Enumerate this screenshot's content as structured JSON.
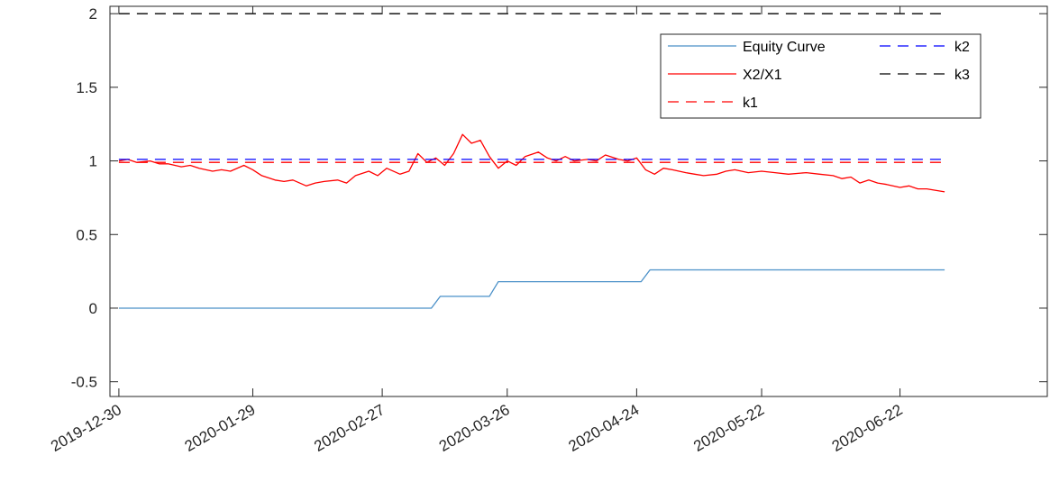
{
  "chart_data": {
    "type": "line",
    "title": "",
    "xlabel": "",
    "ylabel": "",
    "xlim": [
      "2019-12-28",
      "2020-07-25"
    ],
    "ylim": [
      -0.6,
      2.05
    ],
    "y_ticks": [
      -0.5,
      0,
      0.5,
      1,
      1.5,
      2
    ],
    "y_tick_labels": [
      "-0.5",
      "0",
      "0.5",
      "1",
      "1.5",
      "2"
    ],
    "x_ticks": [
      "2019-12-30",
      "2020-01-29",
      "2020-02-27",
      "2020-03-26",
      "2020-04-24",
      "2020-05-22",
      "2020-06-22"
    ],
    "x_tick_labels": [
      "2019-12-30",
      "2020-01-29",
      "2020-02-27",
      "2020-03-26",
      "2020-04-24",
      "2020-05-22",
      "2020-06-22"
    ],
    "grid": false,
    "legend_position": "top-right",
    "legend_columns": 2,
    "series": [
      {
        "name": "Equity Curve",
        "color": "#4A90C8",
        "style": "solid",
        "points": [
          [
            "2019-12-30",
            0
          ],
          [
            "2020-03-09",
            0
          ],
          [
            "2020-03-11",
            0.08
          ],
          [
            "2020-03-22",
            0.08
          ],
          [
            "2020-03-24",
            0.18
          ],
          [
            "2020-04-25",
            0.18
          ],
          [
            "2020-04-27",
            0.26
          ],
          [
            "2020-07-02",
            0.26
          ]
        ]
      },
      {
        "name": "X2/X1",
        "color": "#FF0000",
        "style": "solid",
        "points": [
          [
            "2019-12-30",
            1.0
          ],
          [
            "2020-01-01",
            1.01
          ],
          [
            "2020-01-03",
            0.99
          ],
          [
            "2020-01-06",
            1.0
          ],
          [
            "2020-01-08",
            0.98
          ],
          [
            "2020-01-10",
            0.98
          ],
          [
            "2020-01-13",
            0.96
          ],
          [
            "2020-01-15",
            0.97
          ],
          [
            "2020-01-17",
            0.95
          ],
          [
            "2020-01-20",
            0.93
          ],
          [
            "2020-01-22",
            0.94
          ],
          [
            "2020-01-24",
            0.93
          ],
          [
            "2020-01-27",
            0.97
          ],
          [
            "2020-01-29",
            0.94
          ],
          [
            "2020-01-31",
            0.9
          ],
          [
            "2020-02-03",
            0.87
          ],
          [
            "2020-02-05",
            0.86
          ],
          [
            "2020-02-07",
            0.87
          ],
          [
            "2020-02-10",
            0.83
          ],
          [
            "2020-02-12",
            0.85
          ],
          [
            "2020-02-14",
            0.86
          ],
          [
            "2020-02-17",
            0.87
          ],
          [
            "2020-02-19",
            0.85
          ],
          [
            "2020-02-21",
            0.9
          ],
          [
            "2020-02-24",
            0.93
          ],
          [
            "2020-02-26",
            0.9
          ],
          [
            "2020-02-28",
            0.95
          ],
          [
            "2020-03-02",
            0.91
          ],
          [
            "2020-03-04",
            0.93
          ],
          [
            "2020-03-06",
            1.05
          ],
          [
            "2020-03-08",
            0.99
          ],
          [
            "2020-03-10",
            1.02
          ],
          [
            "2020-03-12",
            0.97
          ],
          [
            "2020-03-14",
            1.05
          ],
          [
            "2020-03-16",
            1.18
          ],
          [
            "2020-03-18",
            1.12
          ],
          [
            "2020-03-20",
            1.14
          ],
          [
            "2020-03-22",
            1.03
          ],
          [
            "2020-03-24",
            0.95
          ],
          [
            "2020-03-26",
            1.0
          ],
          [
            "2020-03-28",
            0.97
          ],
          [
            "2020-03-30",
            1.03
          ],
          [
            "2020-04-02",
            1.06
          ],
          [
            "2020-04-04",
            1.02
          ],
          [
            "2020-04-06",
            1.0
          ],
          [
            "2020-04-08",
            1.03
          ],
          [
            "2020-04-10",
            1.0
          ],
          [
            "2020-04-13",
            1.01
          ],
          [
            "2020-04-15",
            1.0
          ],
          [
            "2020-04-17",
            1.04
          ],
          [
            "2020-04-20",
            1.01
          ],
          [
            "2020-04-22",
            1.0
          ],
          [
            "2020-04-24",
            1.02
          ],
          [
            "2020-04-26",
            0.94
          ],
          [
            "2020-04-28",
            0.91
          ],
          [
            "2020-04-30",
            0.95
          ],
          [
            "2020-05-02",
            0.94
          ],
          [
            "2020-05-05",
            0.92
          ],
          [
            "2020-05-07",
            0.91
          ],
          [
            "2020-05-09",
            0.9
          ],
          [
            "2020-05-12",
            0.91
          ],
          [
            "2020-05-14",
            0.93
          ],
          [
            "2020-05-16",
            0.94
          ],
          [
            "2020-05-19",
            0.92
          ],
          [
            "2020-05-22",
            0.93
          ],
          [
            "2020-05-25",
            0.92
          ],
          [
            "2020-05-28",
            0.91
          ],
          [
            "2020-06-01",
            0.92
          ],
          [
            "2020-06-04",
            0.91
          ],
          [
            "2020-06-07",
            0.9
          ],
          [
            "2020-06-09",
            0.88
          ],
          [
            "2020-06-11",
            0.89
          ],
          [
            "2020-06-13",
            0.85
          ],
          [
            "2020-06-15",
            0.87
          ],
          [
            "2020-06-17",
            0.85
          ],
          [
            "2020-06-19",
            0.84
          ],
          [
            "2020-06-22",
            0.82
          ],
          [
            "2020-06-24",
            0.83
          ],
          [
            "2020-06-26",
            0.81
          ],
          [
            "2020-06-28",
            0.81
          ],
          [
            "2020-07-02",
            0.79
          ]
        ]
      },
      {
        "name": "k1",
        "color": "#FF0000",
        "style": "dashed",
        "points": [
          [
            "2019-12-30",
            0.99
          ],
          [
            "2020-07-02",
            0.99
          ]
        ]
      },
      {
        "name": "k2",
        "color": "#0000FF",
        "style": "dashed",
        "points": [
          [
            "2019-12-30",
            1.01
          ],
          [
            "2020-07-02",
            1.01
          ]
        ]
      },
      {
        "name": "k3",
        "color": "#000000",
        "style": "dashed",
        "points": [
          [
            "2019-12-30",
            2.0
          ],
          [
            "2020-07-02",
            2.0
          ]
        ]
      }
    ]
  }
}
